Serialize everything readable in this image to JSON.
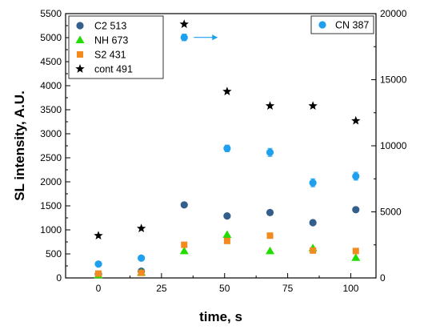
{
  "chart_data": {
    "type": "scatter",
    "xlabel": "time, s",
    "ylabel": "SL intensity, A.U.",
    "xlim": [
      -13,
      110
    ],
    "ylim": [
      0,
      5500
    ],
    "y2lim": [
      0,
      20000
    ],
    "x_ticks": [
      0,
      25,
      50,
      75,
      100
    ],
    "y_ticks": [
      0,
      500,
      1000,
      1500,
      2000,
      2500,
      3000,
      3500,
      4000,
      4500,
      5000,
      5500
    ],
    "y2_ticks": [
      0,
      5000,
      10000,
      15000,
      20000
    ],
    "x": [
      0,
      17,
      34,
      51,
      68,
      85,
      102
    ],
    "series": [
      {
        "name": "C2 513",
        "axis": "left",
        "marker": "circle",
        "color": "#335f8c",
        "values": [
          80,
          140,
          1520,
          1290,
          1360,
          1150,
          1420
        ]
      },
      {
        "name": "NH 673",
        "axis": "left",
        "marker": "triangle",
        "color": "#22dd00",
        "values": [
          60,
          110,
          560,
          900,
          560,
          620,
          420
        ]
      },
      {
        "name": "S2 431",
        "axis": "left",
        "marker": "square",
        "color": "#f28a1e",
        "values": [
          90,
          105,
          690,
          770,
          880,
          570,
          560
        ]
      },
      {
        "name": "cont 491",
        "axis": "left",
        "marker": "star",
        "color": "#000000",
        "values": [
          880,
          1030,
          5280,
          3880,
          3580,
          3580,
          3270
        ]
      },
      {
        "name": "CN 387",
        "axis": "right",
        "marker": "circle",
        "color": "#1ea0ef",
        "values": [
          1050,
          1500,
          18200,
          9800,
          9500,
          7200,
          7700
        ],
        "errors": [
          0,
          0,
          250,
          250,
          300,
          300,
          300
        ]
      }
    ],
    "legend_left": [
      "C2 513",
      "NH 673",
      "S2 431",
      "cont 491"
    ],
    "legend_right": [
      "CN 387"
    ],
    "legend_placement": "top-left and top-right",
    "grid": false
  }
}
